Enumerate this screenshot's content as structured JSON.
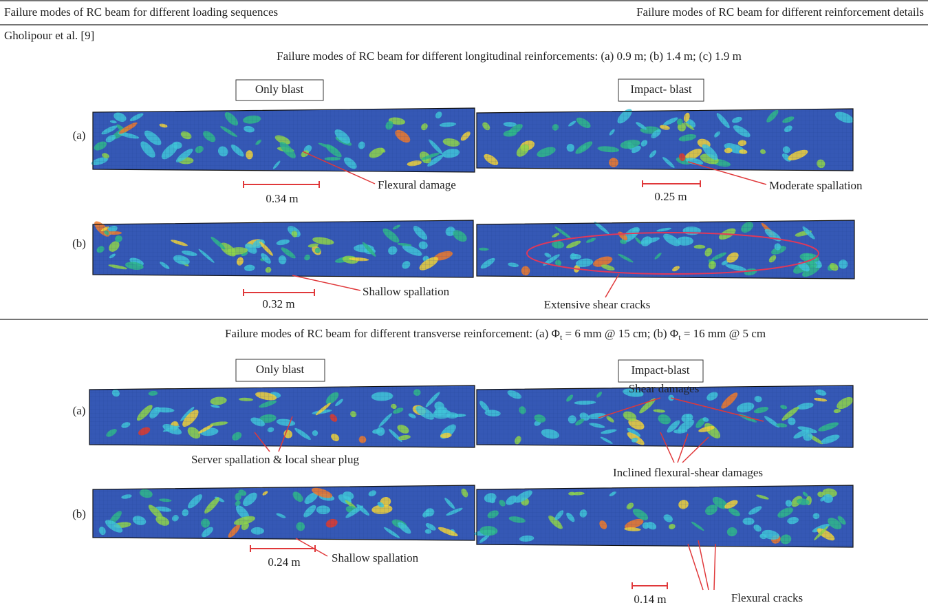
{
  "header": {
    "col1": "Failure modes of RC beam for different loading sequences",
    "col2": "Failure modes of RC beam for different reinforcement details"
  },
  "reference": "Gholipour et al. [9]",
  "sections": [
    {
      "caption_parts": [
        "Failure modes of RC beam for different longitudinal reinforcements: (a) 0.9 m; (b) 1.4 m; (c) 1.9 m"
      ],
      "columns": [
        "Only blast",
        "Impact- blast"
      ],
      "rows": [
        {
          "label": "(a)",
          "left": {
            "dimension": "0.34 m",
            "note": "Flexural damage"
          },
          "right": {
            "dimension": "0.25 m",
            "note": "Moderate spallation"
          }
        },
        {
          "label": "(b)",
          "left": {
            "dimension": "0.32 m",
            "note": "Shallow spallation"
          },
          "right": {
            "note": "Extensive shear cracks"
          }
        }
      ]
    },
    {
      "caption_parts": [
        "Failure modes of RC beam for different transverse reinforcement: (a) Φ",
        "t",
        " = 6 mm @ 15 cm; (b) Φ",
        "t",
        " = 16 mm @ 5 cm"
      ],
      "columns": [
        "Only blast",
        "Impact-blast"
      ],
      "rows": [
        {
          "label": "(a)",
          "left": {
            "note": "Server spallation & local shear plug"
          },
          "right": {
            "note": "Inclined flexural-shear damages",
            "note2": "Shear damages"
          }
        },
        {
          "label": "(b)",
          "left": {
            "dimension": "0.24 m",
            "note": "Shallow spallation"
          },
          "right": {
            "dimension": "0.14 m",
            "note": "Flexural cracks"
          }
        }
      ]
    }
  ]
}
